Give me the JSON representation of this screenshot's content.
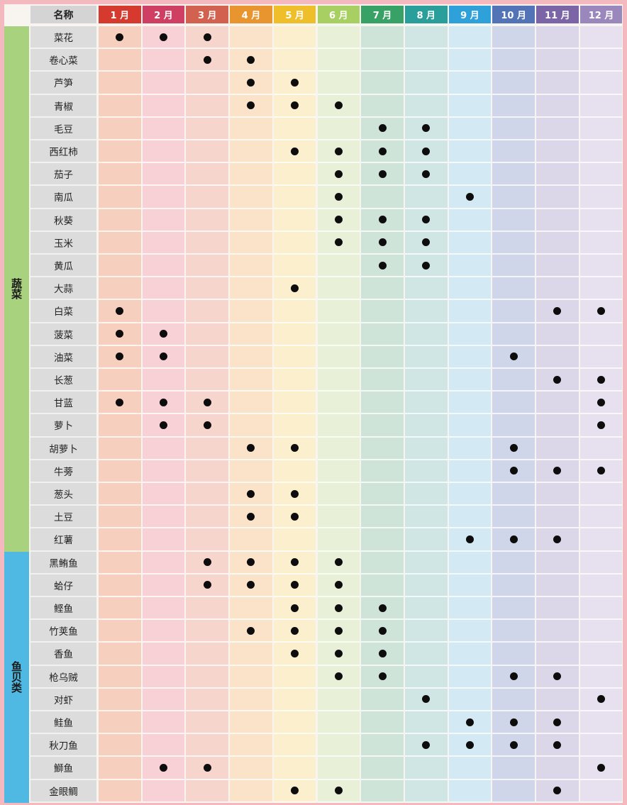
{
  "header": {
    "name_label": "名称",
    "months": [
      "1 月",
      "2 月",
      "3 月",
      "4 月",
      "5 月",
      "6 月",
      "7 月",
      "8 月",
      "9 月",
      "10 月",
      "11 月",
      "12 月"
    ]
  },
  "colors": {
    "month_headers": [
      "#d63a2e",
      "#cf3f63",
      "#d2624f",
      "#e9952f",
      "#eebf2a",
      "#a8cf61",
      "#38a166",
      "#2a9e9a",
      "#2ea0da",
      "#5274b6",
      "#7c65a6",
      "#9a88bd"
    ],
    "month_columns": [
      "#f6cfbf",
      "#f7d1d6",
      "#f6d5cd",
      "#fbe3ca",
      "#fbefcd",
      "#e8f0d8",
      "#cfe4d8",
      "#cfe6e4",
      "#d3e9f3",
      "#cfd6ea",
      "#dbd7e9",
      "#e6e0ef"
    ],
    "category_vegetable": "#a9d27e",
    "category_seafood": "#4fb8e3"
  },
  "categories": [
    {
      "label": "蔬菜",
      "count": 23
    },
    {
      "label": "鱼贝类",
      "count": 11
    }
  ],
  "rows": [
    {
      "name": "菜花",
      "months": [
        1,
        2,
        3
      ]
    },
    {
      "name": "卷心菜",
      "months": [
        3,
        4
      ]
    },
    {
      "name": "芦笋",
      "months": [
        4,
        5
      ]
    },
    {
      "name": "青椒",
      "months": [
        4,
        5,
        6
      ]
    },
    {
      "name": "毛豆",
      "months": [
        7,
        8
      ]
    },
    {
      "name": "西红柿",
      "months": [
        5,
        6,
        7,
        8
      ]
    },
    {
      "name": "茄子",
      "months": [
        6,
        7,
        8
      ]
    },
    {
      "name": "南瓜",
      "months": [
        6,
        9
      ]
    },
    {
      "name": "秋葵",
      "months": [
        6,
        7,
        8
      ]
    },
    {
      "name": "玉米",
      "months": [
        6,
        7,
        8
      ]
    },
    {
      "name": "黄瓜",
      "months": [
        7,
        8
      ]
    },
    {
      "name": "大蒜",
      "months": [
        5
      ]
    },
    {
      "name": "白菜",
      "months": [
        1,
        11,
        12
      ]
    },
    {
      "name": "菠菜",
      "months": [
        1,
        2
      ]
    },
    {
      "name": "油菜",
      "months": [
        1,
        2,
        10
      ]
    },
    {
      "name": "长葱",
      "months": [
        11,
        12
      ]
    },
    {
      "name": "甘蓝",
      "months": [
        1,
        2,
        3,
        12
      ]
    },
    {
      "name": "萝卜",
      "months": [
        2,
        3,
        12
      ]
    },
    {
      "name": "胡萝卜",
      "months": [
        4,
        5,
        10
      ]
    },
    {
      "name": "牛蒡",
      "months": [
        10,
        11,
        12
      ]
    },
    {
      "name": "葱头",
      "months": [
        4,
        5
      ]
    },
    {
      "name": "土豆",
      "months": [
        4,
        5
      ]
    },
    {
      "name": "红薯",
      "months": [
        9,
        10,
        11
      ]
    },
    {
      "name": "黑鲔鱼",
      "months": [
        3,
        4,
        5,
        6
      ]
    },
    {
      "name": "蛤仔",
      "months": [
        3,
        4,
        5,
        6
      ]
    },
    {
      "name": "鲣鱼",
      "months": [
        5,
        6,
        7
      ]
    },
    {
      "name": "竹荚鱼",
      "months": [
        4,
        5,
        6,
        7
      ]
    },
    {
      "name": "香鱼",
      "months": [
        5,
        6,
        7
      ]
    },
    {
      "name": "枪乌贼",
      "months": [
        6,
        7,
        10,
        11
      ]
    },
    {
      "name": "对虾",
      "months": [
        8,
        12
      ]
    },
    {
      "name": "鲑鱼",
      "months": [
        9,
        10,
        11
      ]
    },
    {
      "name": "秋刀鱼",
      "months": [
        8,
        9,
        10,
        11
      ]
    },
    {
      "name": "鰤鱼",
      "months": [
        2,
        3,
        12
      ]
    },
    {
      "name": "金眼鲷",
      "months": [
        5,
        6,
        11
      ]
    }
  ]
}
